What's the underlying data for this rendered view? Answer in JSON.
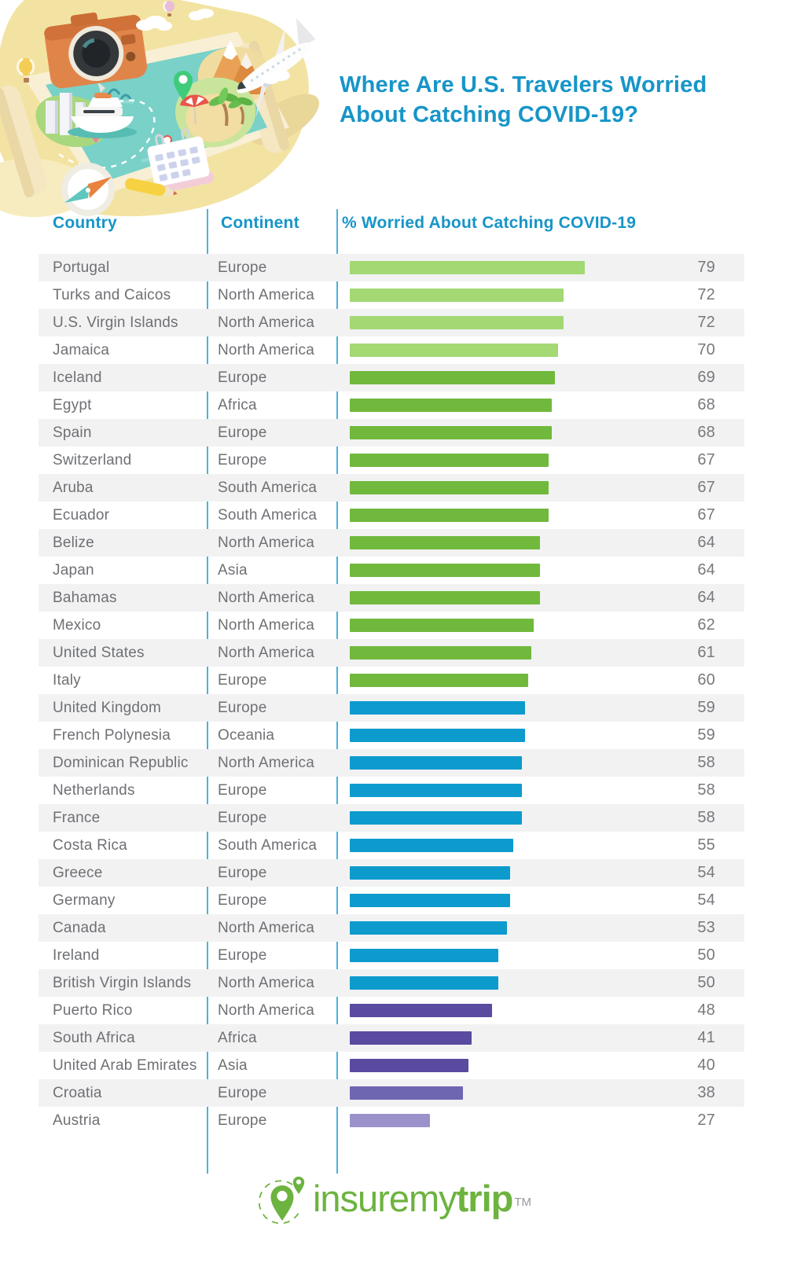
{
  "header": {
    "title_lines": [
      "Where Are U.S. Travelers Worried",
      "About Catching COVID-19?"
    ]
  },
  "table": {
    "columns": [
      "Country",
      "Continent",
      "% Worried About Catching COVID-19"
    ]
  },
  "palette": {
    "greenLight": "#a4d873",
    "green": "#71b93d",
    "blue": "#0d9bce",
    "purple": "#5a4aa0",
    "purpleMid": "#6f66b2",
    "purpleLight": "#9b92cc",
    "accent_blue": "#1795c8",
    "stripe": "#f2f2f3",
    "logo_green": "#6db33f"
  },
  "chart_data": {
    "type": "bar",
    "orientation": "horizontal",
    "title": "Where Are U.S. Travelers Worried About Catching COVID-19?",
    "value_label": "% Worried About Catching COVID-19",
    "value_range": [
      0,
      100
    ],
    "grid": false,
    "legend": false,
    "categories": [
      "Portugal",
      "Turks and Caicos",
      "U.S. Virgin Islands",
      "Jamaica",
      "Iceland",
      "Egypt",
      "Spain",
      "Switzerland",
      "Aruba",
      "Ecuador",
      "Belize",
      "Japan",
      "Bahamas",
      "Mexico",
      "United States",
      "Italy",
      "United Kingdom",
      "French Polynesia",
      "Dominican Republic",
      "Netherlands",
      "France",
      "Costa Rica",
      "Greece",
      "Germany",
      "Canada",
      "Ireland",
      "British Virgin Islands",
      "Puerto Rico",
      "South Africa",
      "United Arab Emirates",
      "Croatia",
      "Austria"
    ],
    "continents": [
      "Europe",
      "North America",
      "North America",
      "North America",
      "Europe",
      "Africa",
      "Europe",
      "Europe",
      "South America",
      "South America",
      "North America",
      "Asia",
      "North America",
      "North America",
      "North America",
      "Europe",
      "Europe",
      "Oceania",
      "North America",
      "Europe",
      "Europe",
      "South America",
      "Europe",
      "Europe",
      "North America",
      "Europe",
      "North America",
      "North America",
      "Africa",
      "Asia",
      "Europe",
      "Europe"
    ],
    "values": [
      79,
      72,
      72,
      70,
      69,
      68,
      68,
      67,
      67,
      67,
      64,
      64,
      64,
      62,
      61,
      60,
      59,
      59,
      58,
      58,
      58,
      55,
      54,
      54,
      53,
      50,
      50,
      48,
      41,
      40,
      38,
      27
    ],
    "color_by_value_tier": {
      "70-79": "#a4d873",
      "60-69": "#71b93d",
      "50-59": "#0d9bce",
      "40-49": "#5a4aa0",
      "30-39": "#6f66b2",
      "0-29": "#9b92cc"
    }
  },
  "logo": {
    "prefix": "insuremy",
    "suffix": "trip",
    "tm": "TM"
  },
  "illustration": {
    "name": "travel-map-illustration",
    "elements": [
      "camera",
      "map-scroll",
      "yacht",
      "airplane",
      "mountain",
      "palm-trees",
      "compass",
      "calendar",
      "pencil",
      "location-pins",
      "hot-air-balloons",
      "city-buildings",
      "beach-umbrella",
      "clouds",
      "dolphins",
      "route-dashes"
    ]
  }
}
